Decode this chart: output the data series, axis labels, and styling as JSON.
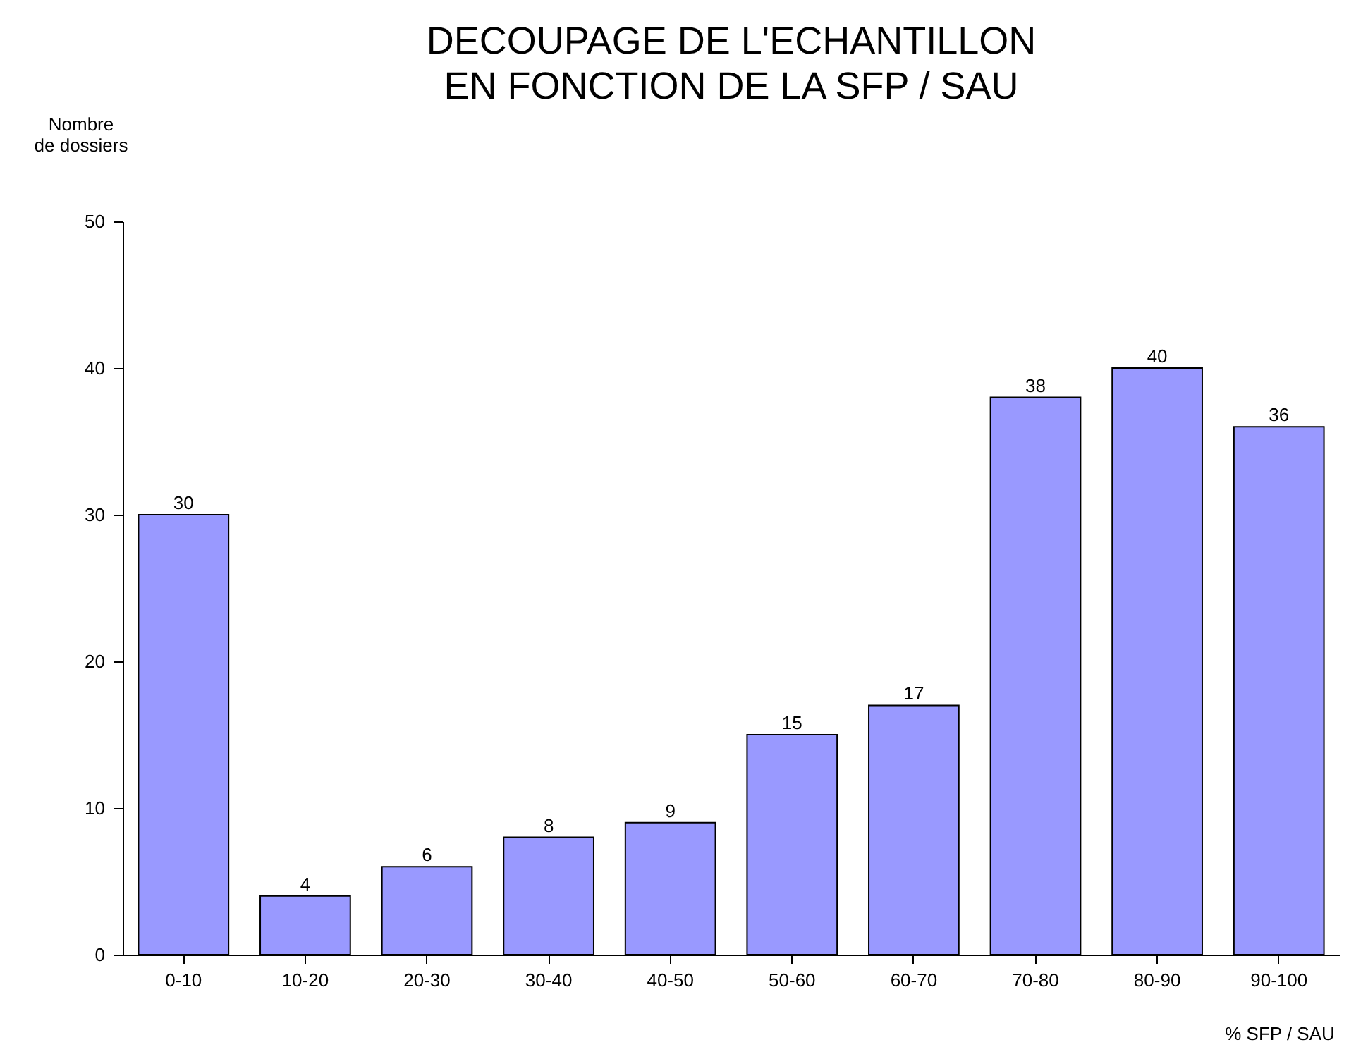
{
  "chart_data": {
    "type": "bar",
    "title": "DECOUPAGE DE L'ECHANTILLON\nEN FONCTION DE LA SFP / SAU",
    "xlabel": "% SFP / SAU",
    "ylabel": "Nombre\nde dossiers",
    "categories": [
      "0-10",
      "10-20",
      "20-30",
      "30-40",
      "40-50",
      "50-60",
      "60-70",
      "70-80",
      "80-90",
      "90-100"
    ],
    "values": [
      30,
      4,
      6,
      8,
      9,
      15,
      17,
      38,
      40,
      36
    ],
    "color": "#9999ff",
    "ylim": [
      0,
      50
    ],
    "yticks": [
      0,
      10,
      20,
      30,
      40,
      50
    ],
    "grid": false,
    "data_labels": true
  }
}
